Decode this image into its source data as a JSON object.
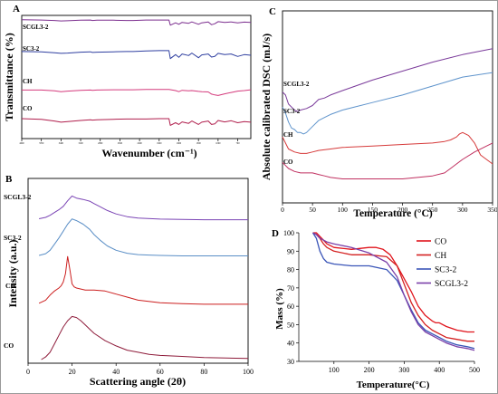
{
  "chart_data": [
    {
      "panel": "A",
      "type": "line",
      "xlabel": "Wavenumber (cm⁻¹)",
      "ylabel": "Transmittance (%)",
      "xlim": [
        500,
        4000
      ],
      "x_reversed": true,
      "grid": false,
      "series": [
        {
          "name": "SCGL3-2",
          "color": "#7b2d8e",
          "x": [
            4000,
            3700,
            3500,
            3400,
            3300,
            3100,
            2950,
            2920,
            2850,
            2600,
            2400,
            2300,
            2100,
            1900,
            1750,
            1730,
            1650,
            1600,
            1550,
            1450,
            1400,
            1300,
            1250,
            1150,
            1100,
            1050,
            1000,
            900,
            800,
            700,
            600,
            500
          ],
          "values": [
            0.93,
            0.92,
            0.9,
            0.88,
            0.89,
            0.91,
            0.92,
            0.9,
            0.91,
            0.91,
            0.9,
            0.9,
            0.92,
            0.92,
            0.92,
            0.7,
            0.8,
            0.74,
            0.82,
            0.78,
            0.84,
            0.74,
            0.8,
            0.84,
            0.72,
            0.76,
            0.85,
            0.82,
            0.84,
            0.8,
            0.83,
            0.82
          ]
        },
        {
          "name": "SC3-2",
          "color": "#2f3fa0",
          "x": [
            4000,
            3700,
            3500,
            3400,
            3300,
            3100,
            2950,
            2920,
            2850,
            2600,
            2400,
            2300,
            2100,
            1900,
            1750,
            1730,
            1650,
            1600,
            1550,
            1450,
            1400,
            1300,
            1250,
            1150,
            1100,
            1050,
            1000,
            900,
            800,
            700,
            600,
            500
          ],
          "values": [
            0.68,
            0.67,
            0.64,
            0.62,
            0.63,
            0.66,
            0.67,
            0.65,
            0.66,
            0.67,
            0.68,
            0.68,
            0.7,
            0.71,
            0.71,
            0.45,
            0.58,
            0.49,
            0.6,
            0.55,
            0.63,
            0.48,
            0.57,
            0.6,
            0.5,
            0.52,
            0.62,
            0.58,
            0.6,
            0.52,
            0.58,
            0.56
          ]
        },
        {
          "name": "CH",
          "color": "#d43a7c",
          "x": [
            4000,
            3700,
            3500,
            3400,
            3300,
            3100,
            2950,
            2920,
            2850,
            2600,
            2400,
            2300,
            2100,
            1900,
            1750,
            1700,
            1650,
            1600,
            1550,
            1450,
            1400,
            1300,
            1250,
            1150,
            1100,
            1050,
            1000,
            900,
            800,
            700,
            600,
            500
          ],
          "values": [
            0.42,
            0.42,
            0.39,
            0.36,
            0.38,
            0.41,
            0.42,
            0.41,
            0.42,
            0.43,
            0.43,
            0.43,
            0.44,
            0.44,
            0.44,
            0.42,
            0.4,
            0.36,
            0.41,
            0.39,
            0.4,
            0.37,
            0.36,
            0.35,
            0.27,
            0.24,
            0.22,
            0.28,
            0.33,
            0.38,
            0.4,
            0.43
          ]
        },
        {
          "name": "CO",
          "color": "#b01e4c",
          "x": [
            4000,
            3700,
            3500,
            3400,
            3300,
            3100,
            2950,
            2920,
            2850,
            2600,
            2400,
            2300,
            2100,
            1900,
            1750,
            1730,
            1650,
            1600,
            1550,
            1450,
            1400,
            1300,
            1250,
            1150,
            1100,
            1050,
            1000,
            900,
            800,
            700,
            600,
            500
          ],
          "values": [
            0.28,
            0.26,
            0.2,
            0.16,
            0.18,
            0.22,
            0.24,
            0.23,
            0.24,
            0.26,
            0.27,
            0.27,
            0.27,
            0.28,
            0.28,
            0.05,
            0.14,
            0.08,
            0.17,
            0.12,
            0.2,
            0.08,
            0.16,
            0.2,
            0.08,
            0.1,
            0.22,
            0.17,
            0.21,
            0.14,
            0.18,
            0.16
          ]
        }
      ]
    },
    {
      "panel": "B",
      "type": "line",
      "xlabel": "Scattering angle (2θ)",
      "ylabel": "Intensity (a.u.)",
      "xlim": [
        0,
        100
      ],
      "xticks": [
        0,
        20,
        40,
        60,
        80,
        100
      ],
      "grid": false,
      "series": [
        {
          "name": "SCGL3-2",
          "color": "#7b45b5",
          "x": [
            5,
            8,
            10,
            12,
            14,
            16,
            18,
            20,
            22,
            25,
            28,
            30,
            33,
            36,
            40,
            45,
            50,
            60,
            70,
            80,
            90,
            100
          ],
          "values": [
            0.04,
            0.08,
            0.14,
            0.22,
            0.3,
            0.4,
            0.56,
            0.7,
            0.64,
            0.6,
            0.55,
            0.48,
            0.38,
            0.28,
            0.18,
            0.1,
            0.06,
            0.03,
            0.02,
            0.01,
            0.01,
            0.01
          ]
        },
        {
          "name": "SC3-2",
          "color": "#5a8ec6",
          "x": [
            5,
            8,
            10,
            12,
            14,
            16,
            18,
            20,
            22,
            25,
            28,
            30,
            33,
            36,
            40,
            45,
            50,
            55,
            60,
            70,
            80,
            90,
            100
          ],
          "values": [
            0.02,
            0.06,
            0.14,
            0.28,
            0.42,
            0.58,
            0.74,
            0.86,
            0.82,
            0.74,
            0.62,
            0.5,
            0.36,
            0.24,
            0.14,
            0.07,
            0.04,
            0.03,
            0.02,
            0.01,
            0.01,
            0.01,
            0.01
          ]
        },
        {
          "name": "CH",
          "color": "#cc1f1f",
          "x": [
            5,
            8,
            10,
            12,
            14,
            15,
            16,
            17,
            18,
            19,
            20,
            21,
            22,
            24,
            26,
            28,
            30,
            35,
            40,
            45,
            50,
            60,
            70,
            80,
            90,
            100
          ],
          "values": [
            0.04,
            0.1,
            0.2,
            0.28,
            0.34,
            0.38,
            0.46,
            0.62,
            0.96,
            0.7,
            0.42,
            0.36,
            0.34,
            0.32,
            0.3,
            0.3,
            0.3,
            0.28,
            0.22,
            0.16,
            0.1,
            0.05,
            0.03,
            0.02,
            0.02,
            0.02
          ]
        },
        {
          "name": "CO",
          "color": "#8e1b3a",
          "x": [
            6,
            8,
            10,
            12,
            14,
            16,
            18,
            20,
            22,
            24,
            26,
            28,
            30,
            35,
            40,
            45,
            50,
            55,
            60,
            70,
            80,
            90,
            100
          ],
          "values": [
            0.0,
            0.05,
            0.14,
            0.3,
            0.46,
            0.62,
            0.74,
            0.82,
            0.8,
            0.74,
            0.66,
            0.58,
            0.5,
            0.36,
            0.26,
            0.18,
            0.14,
            0.1,
            0.08,
            0.06,
            0.04,
            0.03,
            0.02
          ]
        }
      ]
    },
    {
      "panel": "C",
      "type": "line",
      "xlabel": "Temperature (°C)",
      "ylabel": "Absolute calibrated DSC (mJ/s)",
      "xlim": [
        0,
        350
      ],
      "xticks": [
        0,
        50,
        100,
        150,
        200,
        250,
        300,
        350
      ],
      "grid": false,
      "series": [
        {
          "name": "SCGL3-2",
          "color": "#7a3a9a",
          "x": [
            0,
            5,
            10,
            20,
            25,
            30,
            40,
            50,
            60,
            70,
            80,
            100,
            150,
            200,
            250,
            300,
            350
          ],
          "values": [
            0.74,
            0.72,
            0.66,
            0.62,
            0.61,
            0.62,
            0.63,
            0.65,
            0.69,
            0.7,
            0.72,
            0.75,
            0.82,
            0.88,
            0.94,
            0.99,
            1.03
          ]
        },
        {
          "name": "SC3-2",
          "color": "#5f94cc",
          "x": [
            0,
            5,
            10,
            15,
            20,
            25,
            30,
            35,
            40,
            50,
            60,
            70,
            80,
            100,
            150,
            200,
            250,
            300,
            350
          ],
          "values": [
            0.64,
            0.6,
            0.54,
            0.5,
            0.49,
            0.47,
            0.47,
            0.46,
            0.47,
            0.51,
            0.55,
            0.57,
            0.59,
            0.62,
            0.67,
            0.72,
            0.78,
            0.84,
            0.87
          ]
        },
        {
          "name": "CH",
          "color": "#d63a3a",
          "x": [
            0,
            5,
            10,
            20,
            30,
            40,
            50,
            60,
            80,
            100,
            150,
            200,
            250,
            270,
            280,
            290,
            295,
            300,
            310,
            320,
            330,
            350
          ],
          "values": [
            0.44,
            0.4,
            0.36,
            0.34,
            0.33,
            0.33,
            0.34,
            0.35,
            0.36,
            0.37,
            0.38,
            0.39,
            0.4,
            0.41,
            0.42,
            0.44,
            0.46,
            0.47,
            0.45,
            0.4,
            0.32,
            0.26
          ]
        },
        {
          "name": "CO",
          "color": "#c03060",
          "x": [
            0,
            5,
            10,
            20,
            30,
            40,
            50,
            60,
            70,
            80,
            100,
            150,
            200,
            250,
            270,
            280,
            290,
            300,
            320,
            340,
            350
          ],
          "values": [
            0.27,
            0.25,
            0.23,
            0.21,
            0.2,
            0.2,
            0.2,
            0.19,
            0.18,
            0.17,
            0.16,
            0.16,
            0.16,
            0.18,
            0.2,
            0.23,
            0.26,
            0.29,
            0.34,
            0.38,
            0.4
          ]
        }
      ]
    },
    {
      "panel": "D",
      "type": "line",
      "xlabel": "Temperature(°C)",
      "ylabel": "Mass (%)",
      "xlim": [
        0,
        500
      ],
      "ylim": [
        30,
        100
      ],
      "xticks": [
        100,
        200,
        300,
        400,
        500
      ],
      "yticks": [
        30,
        40,
        50,
        60,
        70,
        80,
        90,
        100
      ],
      "legend": "top-right",
      "grid": false,
      "series": [
        {
          "name": "CO",
          "color": "#e0141c",
          "x": [
            40,
            50,
            60,
            70,
            80,
            100,
            150,
            200,
            220,
            240,
            260,
            280,
            300,
            320,
            340,
            360,
            380,
            390,
            400,
            420,
            450,
            480,
            500
          ],
          "values": [
            100,
            100,
            98,
            96,
            94,
            92,
            91,
            92,
            92,
            91,
            88,
            82,
            75,
            68,
            60,
            55,
            52,
            51,
            51,
            49,
            47,
            46,
            46
          ]
        },
        {
          "name": "CH",
          "color": "#d42020",
          "x": [
            40,
            50,
            60,
            70,
            80,
            100,
            150,
            200,
            250,
            280,
            300,
            320,
            340,
            360,
            380,
            400,
            420,
            450,
            480,
            500
          ],
          "values": [
            100,
            99,
            97,
            94,
            92,
            90,
            88,
            88,
            87,
            82,
            72,
            62,
            55,
            50,
            47,
            45,
            43,
            42,
            41,
            41
          ]
        },
        {
          "name": "SC3-2",
          "color": "#3a55b8",
          "x": [
            40,
            50,
            60,
            70,
            80,
            100,
            150,
            200,
            250,
            280,
            300,
            320,
            340,
            360,
            380,
            400,
            420,
            450,
            480,
            500
          ],
          "values": [
            100,
            97,
            90,
            86,
            84,
            83,
            82,
            82,
            80,
            74,
            66,
            58,
            51,
            47,
            45,
            43,
            41,
            39,
            38,
            37
          ]
        },
        {
          "name": "SCGL3-2",
          "color": "#7b3fa8",
          "x": [
            40,
            50,
            60,
            70,
            80,
            100,
            150,
            200,
            250,
            280,
            300,
            320,
            340,
            360,
            380,
            400,
            420,
            450,
            480,
            500
          ],
          "values": [
            100,
            99,
            97,
            96,
            95,
            94,
            92,
            89,
            84,
            76,
            66,
            57,
            50,
            46,
            44,
            42,
            40,
            38,
            37,
            36
          ]
        }
      ]
    }
  ]
}
